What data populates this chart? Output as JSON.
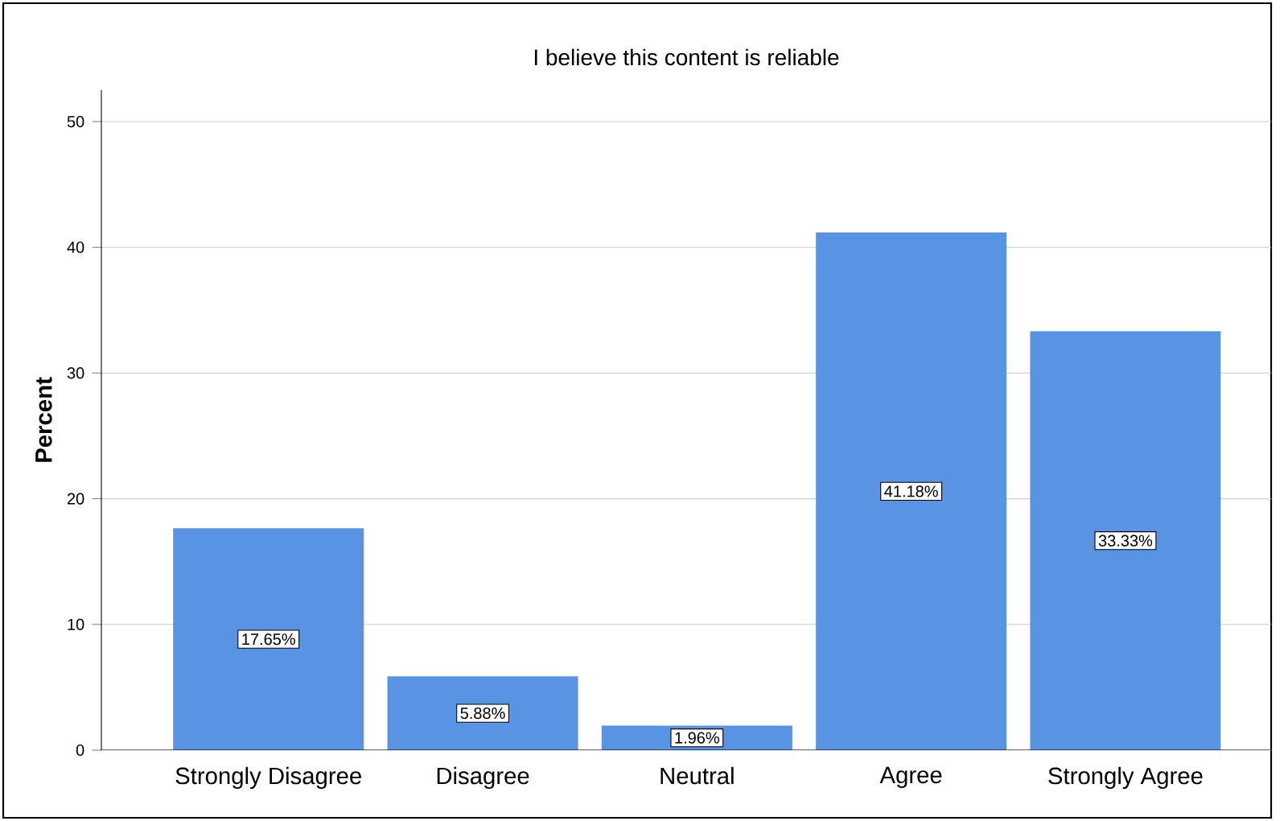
{
  "chart_data": {
    "type": "bar",
    "title": "I believe this content is reliable",
    "ylabel": "Percent",
    "categories": [
      "Strongly Disagree",
      "Disagree",
      "Neutral",
      "Agree",
      "Strongly Agree"
    ],
    "values": [
      17.65,
      5.88,
      1.96,
      41.18,
      33.33
    ],
    "value_labels": [
      "17.65%",
      "5.88%",
      "1.96%",
      "41.18%",
      "33.33%"
    ],
    "color": "#5894e3",
    "ylim": [
      0,
      52.5
    ],
    "yticks": [
      0,
      10,
      20,
      30,
      40,
      50
    ],
    "grid": "y"
  }
}
